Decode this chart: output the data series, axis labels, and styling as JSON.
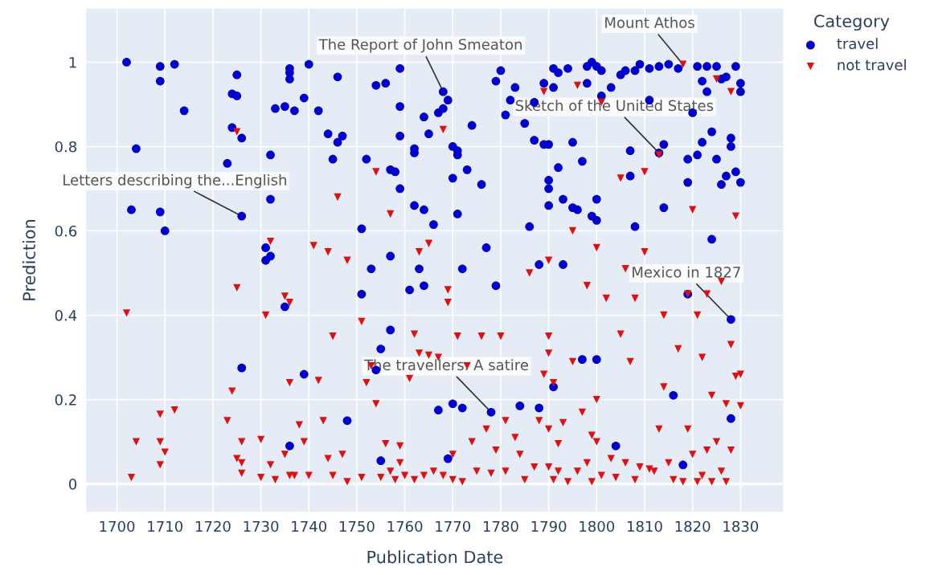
{
  "chart_data": {
    "type": "scatter",
    "xlabel": "Publication Date",
    "ylabel": "Prediction",
    "legend_title": "Category",
    "legend": "right",
    "grid": true,
    "xlim": [
      1693.6,
      1838.9
    ],
    "ylim": [
      -0.066,
      1.127
    ],
    "xticks": [
      1700,
      1710,
      1720,
      1730,
      1740,
      1750,
      1760,
      1770,
      1780,
      1790,
      1800,
      1810,
      1820,
      1830
    ],
    "yticks": [
      0,
      0.2,
      0.4,
      0.6,
      0.8,
      1
    ],
    "annotations": [
      {
        "text": "Letters describing the...English",
        "x": 1726,
        "y": 0.635
      },
      {
        "text": "The Report of John Smeaton",
        "x": 1768,
        "y": 0.93
      },
      {
        "text": "Mount Athos",
        "x": 1818,
        "y": 0.995
      },
      {
        "text": "Sketch of the United States",
        "x": 1813,
        "y": 0.785
      },
      {
        "text": "Mexico in 1827",
        "x": 1828,
        "y": 0.39
      },
      {
        "text": "The travellers. A satire",
        "x": 1778,
        "y": 0.17
      }
    ],
    "series": [
      {
        "name": "travel",
        "color": "#0000cc",
        "marker": "circle",
        "x": [
          1702,
          1703,
          1704,
          1709,
          1709,
          1709,
          1710,
          1712,
          1714,
          1723,
          1724,
          1724,
          1725,
          1725,
          1726,
          1726,
          1726,
          1731,
          1731,
          1732,
          1732,
          1732,
          1733,
          1735,
          1735,
          1736,
          1736,
          1736,
          1736,
          1737,
          1739,
          1739,
          1740,
          1742,
          1744,
          1745,
          1746,
          1746,
          1747,
          1748,
          1751,
          1751,
          1752,
          1753,
          1754,
          1754,
          1755,
          1755,
          1756,
          1757,
          1757,
          1757,
          1758,
          1759,
          1759,
          1759,
          1759,
          1761,
          1762,
          1762,
          1762,
          1763,
          1764,
          1764,
          1764,
          1765,
          1766,
          1767,
          1767,
          1768,
          1768,
          1769,
          1769,
          1770,
          1770,
          1770,
          1771,
          1771,
          1771,
          1772,
          1772,
          1773,
          1774,
          1776,
          1777,
          1778,
          1779,
          1779,
          1780,
          1781,
          1782,
          1783,
          1784,
          1785,
          1786,
          1787,
          1787,
          1788,
          1788,
          1789,
          1789,
          1790,
          1790,
          1790,
          1790,
          1791,
          1791,
          1791,
          1792,
          1792,
          1793,
          1793,
          1794,
          1795,
          1795,
          1796,
          1797,
          1797,
          1798,
          1798,
          1799,
          1799,
          1800,
          1800,
          1800,
          1800,
          1801,
          1801,
          1803,
          1804,
          1805,
          1806,
          1807,
          1807,
          1808,
          1808,
          1809,
          1811,
          1811,
          1813,
          1813,
          1814,
          1814,
          1815,
          1816,
          1817,
          1818,
          1819,
          1819,
          1819,
          1820,
          1821,
          1821,
          1822,
          1822,
          1823,
          1823,
          1824,
          1824,
          1825,
          1825,
          1826,
          1826,
          1827,
          1827,
          1828,
          1828,
          1828,
          1828,
          1829,
          1829,
          1830,
          1830,
          1830
        ],
        "values": [
          1.0,
          0.65,
          0.795,
          0.99,
          0.955,
          0.645,
          0.6,
          0.995,
          0.885,
          0.76,
          0.845,
          0.925,
          0.92,
          0.97,
          0.82,
          0.635,
          0.275,
          0.53,
          0.56,
          0.54,
          0.675,
          0.78,
          0.89,
          0.895,
          0.42,
          0.975,
          0.96,
          0.985,
          0.09,
          0.885,
          0.915,
          0.26,
          0.995,
          0.885,
          0.83,
          0.77,
          0.965,
          0.81,
          0.825,
          0.15,
          0.605,
          0.45,
          0.77,
          0.51,
          0.27,
          0.945,
          0.32,
          0.055,
          0.95,
          0.54,
          0.365,
          0.745,
          0.74,
          0.895,
          0.825,
          0.7,
          0.985,
          0.46,
          0.66,
          0.785,
          0.795,
          0.51,
          0.47,
          0.87,
          0.65,
          0.83,
          0.615,
          0.88,
          0.175,
          0.93,
          0.89,
          0.91,
          0.06,
          0.8,
          0.725,
          0.19,
          0.79,
          0.64,
          0.78,
          0.51,
          0.18,
          0.745,
          0.85,
          0.71,
          0.56,
          0.17,
          0.47,
          0.955,
          0.98,
          0.875,
          0.91,
          0.94,
          0.185,
          0.855,
          0.61,
          0.815,
          0.905,
          0.52,
          0.18,
          0.805,
          0.95,
          0.805,
          0.72,
          0.66,
          0.7,
          0.94,
          0.985,
          0.23,
          0.75,
          0.975,
          0.675,
          0.52,
          0.985,
          0.81,
          0.655,
          0.65,
          0.765,
          0.295,
          0.99,
          0.95,
          1.0,
          0.635,
          0.625,
          0.675,
          0.295,
          0.99,
          0.98,
          0.92,
          0.94,
          0.09,
          0.97,
          0.98,
          0.79,
          0.73,
          0.61,
          0.98,
          0.995,
          0.91,
          0.985,
          0.99,
          0.785,
          0.805,
          0.655,
          0.995,
          0.21,
          0.985,
          0.045,
          0.77,
          0.715,
          0.45,
          0.88,
          0.78,
          0.99,
          0.81,
          0.955,
          0.99,
          0.93,
          0.835,
          0.58,
          0.99,
          0.77,
          0.71,
          0.96,
          0.73,
          0.965,
          0.82,
          0.8,
          0.39,
          0.155,
          0.74,
          0.99,
          0.715,
          0.95,
          0.93
        ]
      },
      {
        "name": "not travel",
        "color": "#dd1111",
        "marker": "triangle",
        "x": [
          1702,
          1703,
          1704,
          1709,
          1709,
          1709,
          1710,
          1712,
          1723,
          1724,
          1725,
          1725,
          1725,
          1726,
          1726,
          1726,
          1730,
          1730,
          1731,
          1732,
          1732,
          1733,
          1735,
          1735,
          1736,
          1736,
          1736,
          1737,
          1738,
          1739,
          1740,
          1741,
          1742,
          1743,
          1744,
          1744,
          1745,
          1745,
          1746,
          1747,
          1748,
          1748,
          1751,
          1751,
          1752,
          1753,
          1754,
          1754,
          1755,
          1756,
          1757,
          1757,
          1758,
          1759,
          1759,
          1760,
          1761,
          1762,
          1762,
          1763,
          1763,
          1764,
          1765,
          1765,
          1766,
          1767,
          1768,
          1768,
          1769,
          1769,
          1770,
          1770,
          1771,
          1772,
          1773,
          1774,
          1775,
          1776,
          1777,
          1778,
          1779,
          1780,
          1781,
          1781,
          1783,
          1784,
          1785,
          1786,
          1787,
          1788,
          1789,
          1789,
          1790,
          1790,
          1790,
          1790,
          1790,
          1791,
          1791,
          1792,
          1792,
          1793,
          1794,
          1795,
          1795,
          1796,
          1796,
          1797,
          1798,
          1798,
          1799,
          1799,
          1800,
          1800,
          1800,
          1801,
          1801,
          1802,
          1803,
          1804,
          1805,
          1805,
          1806,
          1806,
          1807,
          1808,
          1808,
          1809,
          1810,
          1810,
          1811,
          1812,
          1813,
          1813,
          1814,
          1814,
          1815,
          1816,
          1817,
          1818,
          1818,
          1819,
          1819,
          1820,
          1820,
          1821,
          1821,
          1822,
          1822,
          1823,
          1823,
          1824,
          1824,
          1825,
          1825,
          1826,
          1826,
          1827,
          1827,
          1828,
          1828,
          1829,
          1829,
          1830,
          1830,
          1828
        ],
        "values": [
          0.405,
          0.015,
          0.1,
          0.165,
          0.1,
          0.045,
          0.075,
          0.175,
          0.15,
          0.22,
          0.835,
          0.465,
          0.06,
          0.05,
          0.1,
          0.025,
          0.105,
          0.015,
          0.4,
          0.575,
          0.045,
          0.01,
          0.445,
          0.07,
          0.24,
          0.43,
          0.02,
          0.02,
          0.14,
          0.1,
          0.02,
          0.565,
          0.245,
          0.15,
          0.55,
          0.06,
          0.35,
          0.02,
          0.68,
          0.07,
          0.53,
          0.005,
          0.385,
          0.015,
          0.24,
          0.28,
          0.74,
          0.19,
          0.015,
          0.095,
          0.64,
          0.03,
          0.01,
          0.09,
          0.05,
          0.02,
          0.25,
          0.355,
          0.01,
          0.55,
          0.31,
          0.02,
          0.57,
          0.305,
          0.03,
          0.3,
          0.84,
          0.02,
          0.46,
          0.43,
          0.07,
          0.01,
          0.35,
          0.005,
          0.28,
          0.1,
          0.03,
          0.35,
          0.13,
          0.025,
          0.08,
          0.35,
          0.03,
          0.15,
          0.11,
          0.07,
          0.01,
          0.5,
          0.04,
          0.15,
          0.93,
          0.26,
          0.53,
          0.35,
          0.31,
          0.13,
          0.04,
          0.24,
          0.01,
          0.095,
          0.03,
          0.145,
          0.005,
          0.29,
          0.6,
          0.945,
          0.03,
          0.17,
          0.47,
          0.05,
          0.005,
          0.115,
          0.56,
          0.2,
          0.1,
          0.905,
          0.02,
          0.44,
          0.06,
          0.015,
          0.355,
          0.725,
          0.05,
          0.51,
          0.29,
          0.44,
          0.01,
          0.04,
          0.74,
          0.55,
          0.035,
          0.03,
          0.13,
          0.78,
          0.4,
          0.23,
          0.05,
          0.01,
          0.32,
          0.995,
          0.005,
          0.45,
          0.13,
          0.65,
          0.07,
          0.4,
          0.005,
          0.3,
          0.02,
          0.45,
          0.08,
          0.21,
          0.005,
          0.96,
          0.1,
          0.48,
          0.03,
          0.19,
          0.005,
          0.33,
          0.08,
          0.635,
          0.255,
          0.185,
          0.26,
          0.93
        ]
      }
    ]
  }
}
